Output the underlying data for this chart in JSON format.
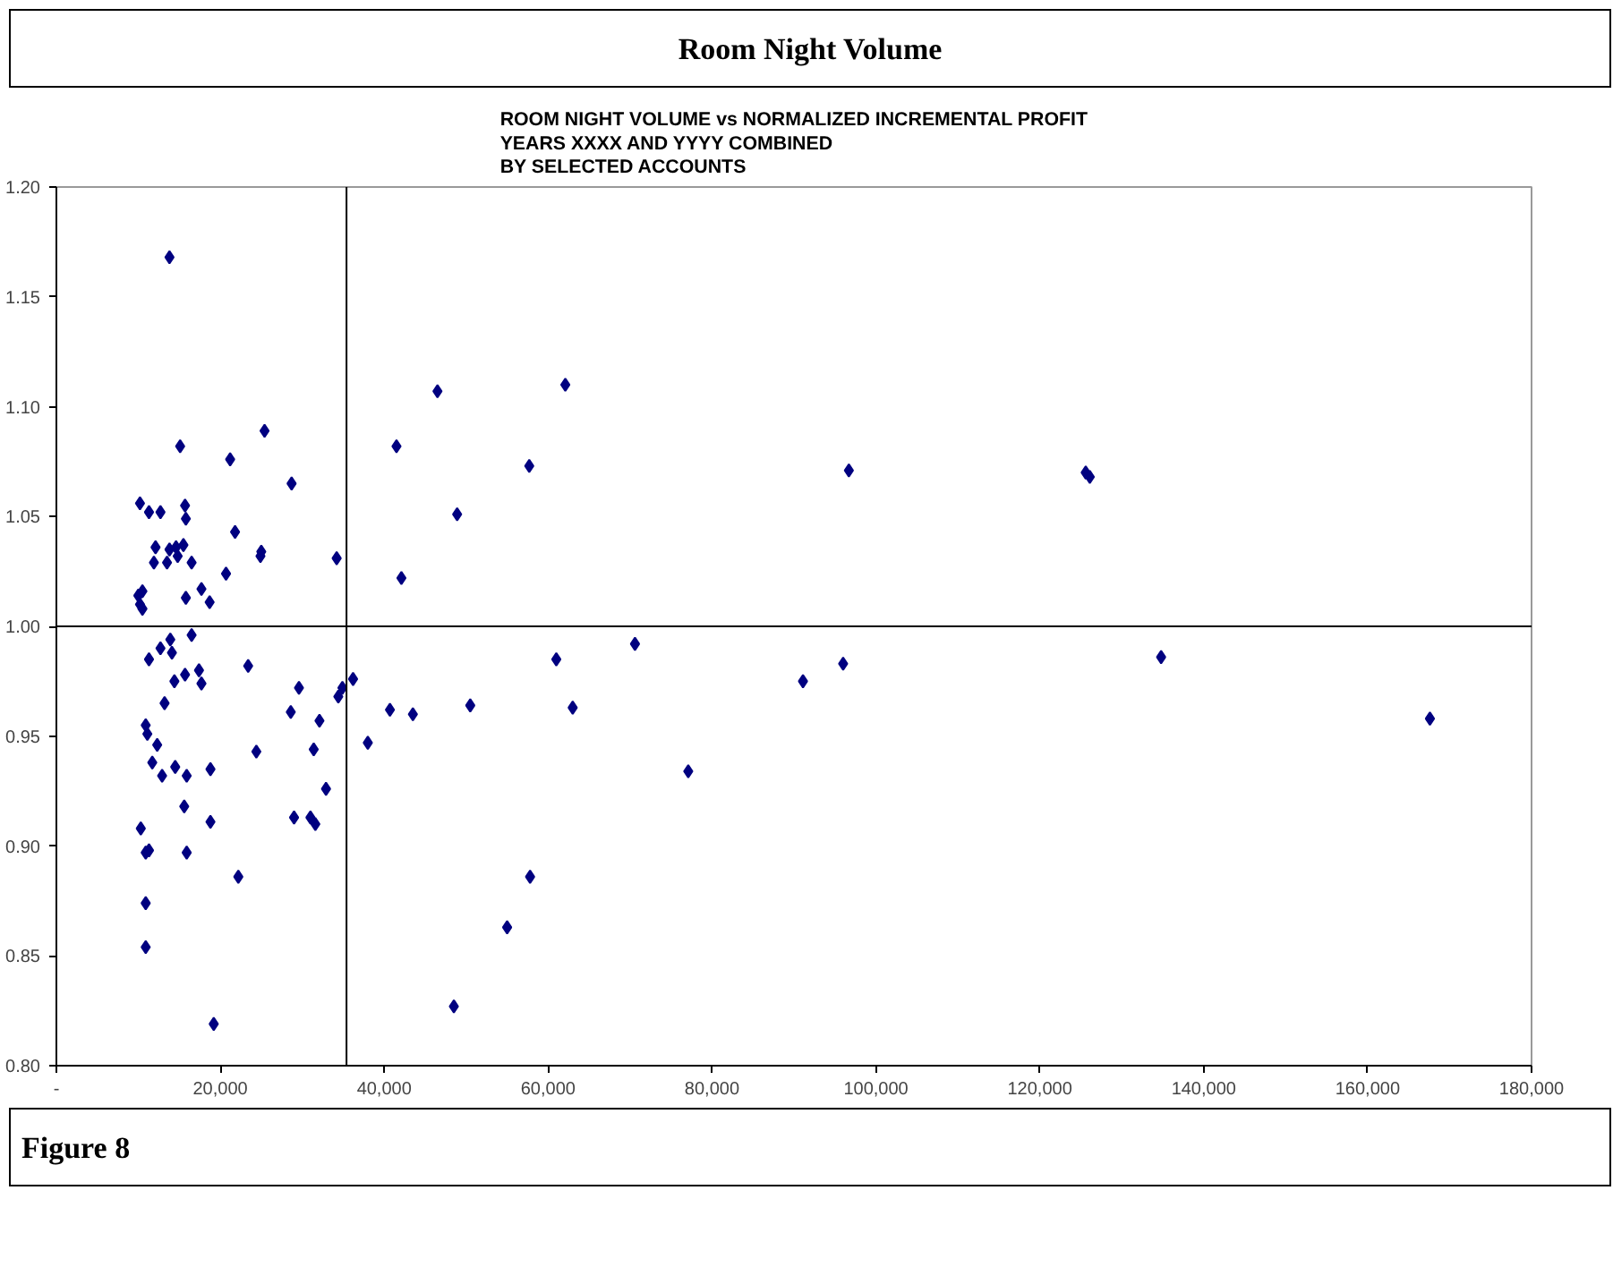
{
  "chart_data": {
    "type": "scatter",
    "title": "Room Night Volume",
    "subtitle": "ROOM NIGHT VOLUME vs NORMALIZED INCREMENTAL PROFIT\nYEARS XXXX AND YYYY COMBINED\nBY SELECTED ACCOUNTS",
    "annotations": [
      "Figure 8"
    ],
    "x": [
      13800,
      46500,
      25400,
      15100,
      41500,
      21200,
      28700,
      10200,
      15700,
      11300,
      12700,
      15800,
      21800,
      12100,
      15500,
      13800,
      14600,
      14800,
      11900,
      13500,
      16500,
      25000,
      24900,
      34200,
      20700,
      42100,
      10500,
      10000,
      17700,
      15800,
      10200,
      10500,
      18700,
      62100,
      57700,
      48900,
      96700,
      70600,
      61000,
      96000,
      91100,
      50500,
      63000,
      77100,
      57800,
      55000,
      48500,
      134800,
      167600,
      125600,
      126100,
      16500,
      13900,
      12700,
      14100,
      11300,
      23400,
      15700,
      17400,
      14400,
      17700,
      29600,
      36200,
      34900,
      34400,
      28600,
      40700,
      43500,
      32100,
      13200,
      10900,
      11100,
      12300,
      38000,
      24400,
      31400,
      11700,
      14500,
      12900,
      15900,
      18800,
      32900,
      15600,
      29000,
      31000,
      31600,
      18800,
      10300,
      10900,
      11300,
      15900,
      22200,
      10900,
      10900,
      19200
    ],
    "values": [
      1.168,
      1.107,
      1.089,
      1.082,
      1.082,
      1.076,
      1.065,
      1.056,
      1.055,
      1.052,
      1.052,
      1.049,
      1.043,
      1.036,
      1.037,
      1.035,
      1.036,
      1.032,
      1.029,
      1.029,
      1.029,
      1.034,
      1.032,
      1.031,
      1.024,
      1.022,
      1.016,
      1.014,
      1.017,
      1.013,
      1.01,
      1.008,
      1.011,
      1.11,
      1.073,
      1.051,
      1.071,
      0.992,
      0.985,
      0.983,
      0.975,
      0.964,
      0.963,
      0.934,
      0.886,
      0.863,
      0.827,
      0.986,
      0.958,
      1.07,
      1.068,
      0.996,
      0.994,
      0.99,
      0.988,
      0.985,
      0.982,
      0.978,
      0.98,
      0.975,
      0.974,
      0.972,
      0.976,
      0.972,
      0.968,
      0.961,
      0.962,
      0.96,
      0.957,
      0.965,
      0.955,
      0.951,
      0.946,
      0.947,
      0.943,
      0.944,
      0.938,
      0.936,
      0.932,
      0.932,
      0.935,
      0.926,
      0.918,
      0.913,
      0.913,
      0.91,
      0.911,
      0.908,
      0.897,
      0.898,
      0.897,
      0.886,
      0.874,
      0.854,
      0.819
    ],
    "color": "#000080",
    "marker": "diamond",
    "xlim": [
      0,
      180000
    ],
    "xticks": [
      {
        "value": 0,
        "label": "-"
      },
      {
        "value": 20000,
        "label": "20,000"
      },
      {
        "value": 40000,
        "label": "40,000"
      },
      {
        "value": 60000,
        "label": "60,000"
      },
      {
        "value": 80000,
        "label": "80,000"
      },
      {
        "value": 100000,
        "label": "100,000"
      },
      {
        "value": 120000,
        "label": "120,000"
      },
      {
        "value": 140000,
        "label": "140,000"
      },
      {
        "value": 160000,
        "label": "160,000"
      },
      {
        "value": 180000,
        "label": "180,000"
      }
    ],
    "ylim": [
      0.8,
      1.2
    ],
    "yticks": [
      {
        "value": 0.8,
        "label": "0.80"
      },
      {
        "value": 0.85,
        "label": "0.85"
      },
      {
        "value": 0.9,
        "label": "0.90"
      },
      {
        "value": 0.95,
        "label": "0.95"
      },
      {
        "value": 1.0,
        "label": "1.00"
      },
      {
        "value": 1.05,
        "label": "1.05"
      },
      {
        "value": 1.1,
        "label": "1.10"
      },
      {
        "value": 1.15,
        "label": "1.15"
      },
      {
        "value": 1.2,
        "label": "1.20"
      }
    ],
    "ref_lines": [
      {
        "axis": "x",
        "value": 35400,
        "color": "#000000"
      },
      {
        "axis": "y",
        "value": 1.0,
        "color": "#000000"
      }
    ],
    "grid": false
  }
}
